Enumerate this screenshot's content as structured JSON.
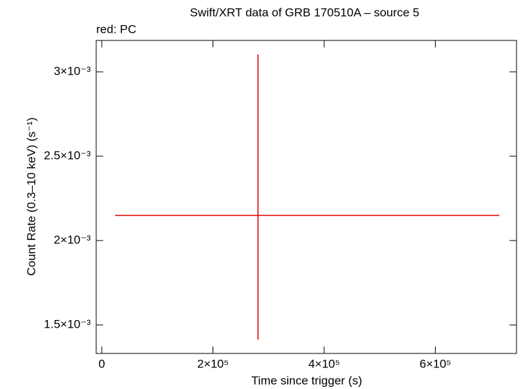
{
  "chart_data": {
    "type": "errorbar-scatter",
    "title": "Swift/XRT data of GRB 170510A – source 5",
    "annotation": "red: PC",
    "x_label": "Time since trigger (s)",
    "y_label": "Count Rate (0.3–10 keV) (s⁻¹)",
    "xlim": [
      -10000,
      746000
    ],
    "ylim": [
      0.001331,
      0.003186
    ],
    "xticks": [
      0,
      {
        "value": 200000,
        "label": "2×10⁵"
      },
      {
        "value": 400000,
        "label": "4×10⁵"
      },
      {
        "value": 600000,
        "label": "6×10⁵"
      }
    ],
    "yticks": [
      {
        "value": 0.0015,
        "label": "1.5×10⁻³"
      },
      {
        "value": 0.002,
        "label": "2×10⁻³"
      },
      {
        "value": 0.0025,
        "label": "2.5×10⁻³"
      },
      {
        "value": 0.003,
        "label": "3×10⁻³"
      }
    ],
    "color": "#e00000",
    "points": [
      {
        "x": 281000,
        "xerr_minus": 257000,
        "xerr_plus": 434000,
        "y": 0.002149,
        "yerr_minus": 0.000736,
        "yerr_plus": 0.000954
      }
    ]
  }
}
